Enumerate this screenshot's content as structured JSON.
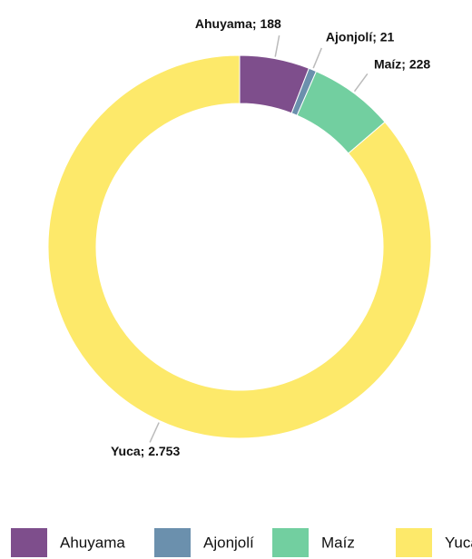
{
  "chart_data": {
    "type": "donut",
    "categories": [
      "Ahuyama",
      "Ajonjolí",
      "Maíz",
      "Yuca"
    ],
    "values": [
      188,
      21,
      228,
      2753
    ],
    "value_labels": [
      "Ahuyama; 188",
      "Ajonjolí; 21",
      "Maíz; 228",
      "Yuca; 2.753"
    ],
    "colors": [
      "#7e4e8c",
      "#6b90ad",
      "#72cfa0",
      "#fde96a"
    ],
    "legend": "bottom"
  }
}
